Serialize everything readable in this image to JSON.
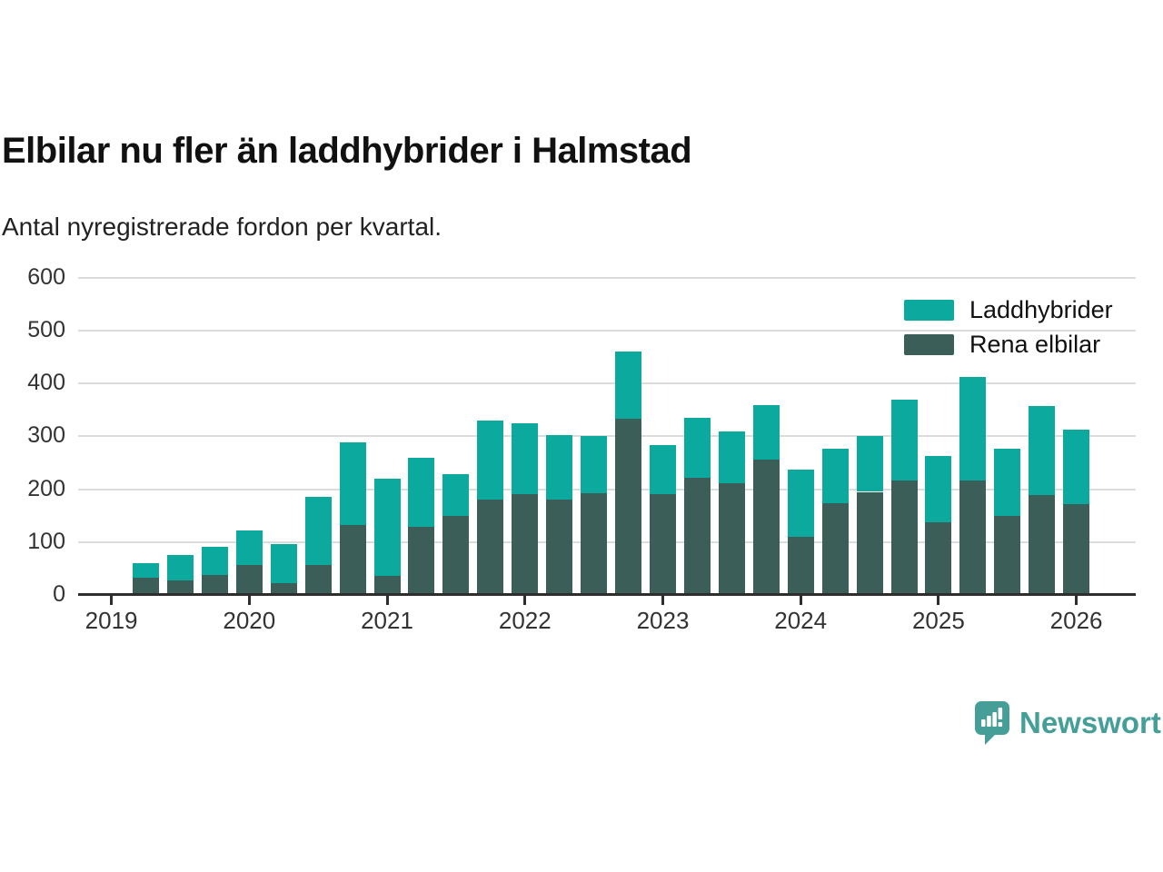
{
  "header": {
    "title": "Elbilar nu fler än laddhybrider i Halmstad",
    "subtitle": "Antal nyregistrerade fordon per kvartal."
  },
  "legend": {
    "items": [
      {
        "label": "Laddhybrider",
        "color": "#0ca99e"
      },
      {
        "label": "Rena elbilar",
        "color": "#3c5e58"
      }
    ]
  },
  "footer": {
    "brand": "Newsworthy",
    "brand_color": "#459e98"
  },
  "chart_data": {
    "type": "bar",
    "stacked": true,
    "title": "Elbilar nu fler än laddhybrider i Halmstad",
    "subtitle": "Antal nyregistrerade fordon per kvartal.",
    "x": [
      "2019 Q2",
      "2019 Q3",
      "2019 Q4",
      "2020 Q1",
      "2020 Q2",
      "2020 Q3",
      "2020 Q4",
      "2021 Q1",
      "2021 Q2",
      "2021 Q3",
      "2021 Q4",
      "2022 Q1",
      "2022 Q2",
      "2022 Q3",
      "2022 Q4",
      "2023 Q1",
      "2023 Q2",
      "2023 Q3",
      "2023 Q4",
      "2024 Q1",
      "2024 Q2",
      "2024 Q3",
      "2024 Q4",
      "2025 Q1",
      "2025 Q2",
      "2025 Q3",
      "2025 Q4",
      "2026 Q1"
    ],
    "x_tick_labels": [
      "2019",
      "2020",
      "2021",
      "2022",
      "2023",
      "2024",
      "2025",
      "2026"
    ],
    "y_ticks": [
      0,
      100,
      200,
      300,
      400,
      500,
      600
    ],
    "ylim": [
      0,
      620
    ],
    "grid": "horizontal",
    "legend_position": "top-right",
    "series": [
      {
        "name": "Rena elbilar",
        "color": "#3c5e58",
        "stack_order": "bottom",
        "values": [
          32,
          27,
          38,
          57,
          22,
          56,
          132,
          37,
          129,
          150,
          181,
          190,
          180,
          193,
          333,
          191,
          222,
          211,
          256,
          110,
          173,
          195,
          217,
          137,
          216,
          149,
          189,
          172
        ]
      },
      {
        "name": "Laddhybrider",
        "color": "#0ca99e",
        "stack_order": "top",
        "values": [
          28,
          49,
          53,
          65,
          75,
          129,
          156,
          183,
          131,
          78,
          149,
          135,
          123,
          107,
          127,
          92,
          113,
          99,
          104,
          127,
          104,
          105,
          153,
          126,
          197,
          128,
          169,
          140
        ]
      }
    ]
  }
}
